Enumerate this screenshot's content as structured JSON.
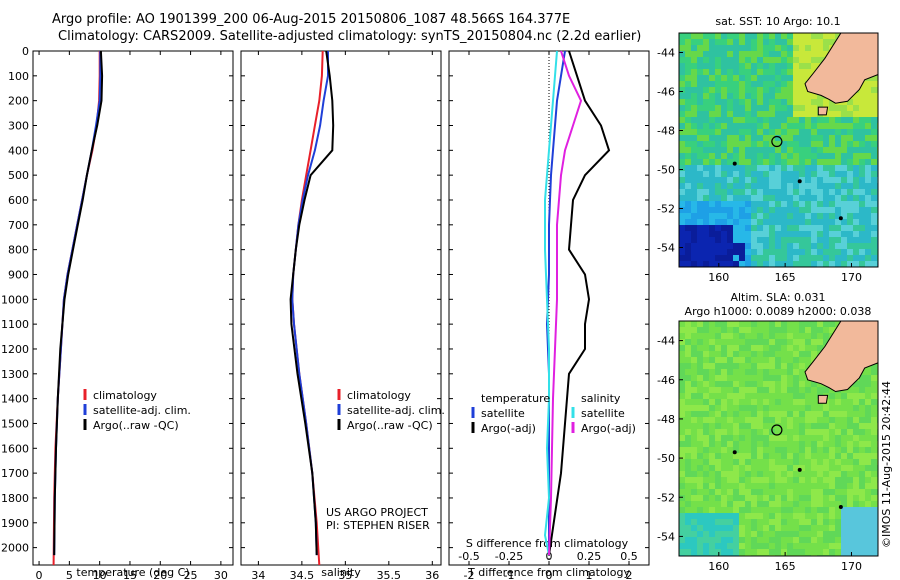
{
  "header": {
    "line1": "Argo profile: AO 1901399_200 06-Aug-2015 20150806_1087 48.566S 164.377E",
    "line2": "Climatology: CARS2009. Satellite-adjusted climatology: synTS_20150804.nc (2.2d earlier)"
  },
  "credit": "©IMOS 11-Aug-2015 20:42:44",
  "project_note": [
    "US ARGO PROJECT",
    "PI: STEPHEN RISER"
  ],
  "colors": {
    "climatology": "#e8202a",
    "satellite": "#1f3fd8",
    "argo": "#000000",
    "sal_satellite": "#33e0e8",
    "sal_argo": "#e020e0",
    "land": "#f2b99b"
  },
  "chart_data": [
    {
      "type": "line",
      "id": "temperature",
      "xlabel": "temperature (deg C)",
      "xlim": [
        -1,
        32
      ],
      "xticks": [
        0,
        5,
        10,
        15,
        20,
        25,
        30
      ],
      "ylim": [
        2070,
        0
      ],
      "yticks": [
        0,
        100,
        200,
        300,
        400,
        500,
        600,
        700,
        800,
        900,
        1000,
        1100,
        1200,
        1300,
        1400,
        1500,
        1600,
        1700,
        1800,
        1900,
        2000
      ],
      "legend": [
        "climatology",
        "satellite-adj. clim.",
        "Argo(..raw -QC)"
      ],
      "series": [
        {
          "name": "climatology",
          "color_key": "climatology",
          "x": [
            10.0,
            10.0,
            9.9,
            9.5,
            8.8,
            7.9,
            7.1,
            6.3,
            5.5,
            4.7,
            4.1,
            3.6,
            3.1,
            2.7,
            2.5,
            2.4
          ],
          "y": [
            0,
            100,
            200,
            300,
            400,
            500,
            600,
            700,
            800,
            900,
            1000,
            1200,
            1400,
            1600,
            1800,
            2070
          ]
        },
        {
          "name": "satellite-adj. clim.",
          "color_key": "satellite",
          "x": [
            10.1,
            10.1,
            10.0,
            9.4,
            8.7,
            7.9,
            7.1,
            6.3,
            5.5,
            4.7,
            4.1,
            3.6,
            3.1,
            2.8,
            2.6,
            2.5
          ],
          "y": [
            0,
            100,
            200,
            300,
            400,
            500,
            600,
            700,
            800,
            900,
            1000,
            1200,
            1400,
            1600,
            1800,
            2030
          ]
        },
        {
          "name": "Argo(..raw -QC)",
          "color_key": "argo",
          "x": [
            10.2,
            10.4,
            10.3,
            9.6,
            8.7,
            7.9,
            7.2,
            6.4,
            5.6,
            4.8,
            4.2,
            3.5,
            3.1,
            2.8,
            2.6,
            2.5
          ],
          "y": [
            0,
            100,
            200,
            300,
            400,
            500,
            600,
            700,
            800,
            900,
            1000,
            1200,
            1400,
            1600,
            1800,
            2030
          ]
        }
      ]
    },
    {
      "type": "line",
      "id": "salinity",
      "xlabel": "salinity",
      "xlim": [
        33.8,
        36.1
      ],
      "xticks": [
        34,
        34.5,
        35,
        35.5,
        36
      ],
      "ylim": [
        2070,
        0
      ],
      "legend": [
        "climatology",
        "satellite-adj. clim.",
        "Argo(..raw -QC)"
      ],
      "series": [
        {
          "name": "climatology",
          "color_key": "climatology",
          "x": [
            34.74,
            34.73,
            34.7,
            34.65,
            34.6,
            34.55,
            34.5,
            34.46,
            34.43,
            34.4,
            34.39,
            34.41,
            34.47,
            34.55,
            34.62,
            34.67,
            34.7
          ],
          "y": [
            0,
            100,
            200,
            300,
            400,
            500,
            600,
            700,
            800,
            900,
            1000,
            1100,
            1300,
            1500,
            1700,
            1900,
            2070
          ]
        },
        {
          "name": "satellite-adj. clim.",
          "color_key": "satellite",
          "x": [
            34.8,
            34.8,
            34.75,
            34.71,
            34.65,
            34.57,
            34.51,
            34.46,
            34.43,
            34.4,
            34.39,
            34.41,
            34.47,
            34.55,
            34.62,
            34.66,
            34.67
          ],
          "y": [
            0,
            100,
            200,
            300,
            400,
            500,
            600,
            700,
            800,
            900,
            1000,
            1100,
            1300,
            1500,
            1700,
            1900,
            2030
          ]
        },
        {
          "name": "Argo(..raw -QC)",
          "color_key": "argo",
          "x": [
            34.78,
            34.82,
            34.85,
            34.86,
            34.85,
            34.6,
            34.53,
            34.47,
            34.43,
            34.4,
            34.37,
            34.38,
            34.45,
            34.54,
            34.62,
            34.66,
            34.67
          ],
          "y": [
            0,
            100,
            200,
            300,
            400,
            500,
            600,
            700,
            800,
            900,
            1000,
            1100,
            1300,
            1500,
            1700,
            1900,
            2030
          ]
        }
      ]
    },
    {
      "type": "line",
      "id": "difference",
      "xlabel": "T difference from climatology",
      "xlabel2": "S difference from climatology",
      "xlim": [
        -2.5,
        2.5
      ],
      "xticks": [
        -2,
        -1,
        0,
        1,
        2
      ],
      "xticks_s": [
        -0.5,
        -0.25,
        0,
        0.25,
        0.5
      ],
      "ylim": [
        2070,
        0
      ],
      "legend_titles": [
        "temperature",
        "salinity"
      ],
      "legend": [
        {
          "group": "temperature",
          "label": "satellite",
          "color_key": "satellite"
        },
        {
          "group": "temperature",
          "label": "Argo(-adj)",
          "color_key": "argo"
        },
        {
          "group": "salinity",
          "label": "satellite",
          "color_key": "sal_satellite"
        },
        {
          "group": "salinity",
          "label": "Argo(-adj)",
          "color_key": "sal_argo"
        }
      ],
      "series": [
        {
          "name": "T satellite",
          "color_key": "satellite",
          "x": [
            0.4,
            0.3,
            0.2,
            0.15,
            0.1,
            0.05,
            0.0,
            0.0,
            -0.05,
            0.0,
            0.0,
            0.0,
            0.0,
            0.0
          ],
          "y": [
            0,
            100,
            200,
            300,
            400,
            500,
            700,
            900,
            1100,
            1300,
            1500,
            1700,
            1900,
            2030
          ]
        },
        {
          "name": "T Argo(-adj)",
          "color_key": "argo",
          "x": [
            0.5,
            0.7,
            0.9,
            1.3,
            1.5,
            0.9,
            0.6,
            0.5,
            0.9,
            1.0,
            0.9,
            0.9,
            0.5,
            0.4,
            0.3,
            0.0
          ],
          "y": [
            0,
            100,
            200,
            300,
            400,
            500,
            600,
            800,
            900,
            1000,
            1100,
            1200,
            1300,
            1500,
            1700,
            2030
          ]
        },
        {
          "name": "S satellite",
          "color_key": "sal_satellite",
          "x": [
            0.2,
            0.15,
            0.1,
            0.0,
            -0.1,
            -0.1,
            -0.05,
            0.0,
            0.0,
            -0.05,
            0.0,
            -0.1,
            0.0
          ],
          "y": [
            0,
            100,
            200,
            400,
            600,
            800,
            1000,
            1200,
            1400,
            1600,
            1800,
            1950,
            2030
          ]
        },
        {
          "name": "S Argo(-adj)",
          "color_key": "sal_argo",
          "x": [
            0.3,
            0.5,
            0.8,
            0.6,
            0.4,
            0.3,
            0.2,
            0.2,
            0.1,
            0.05,
            0.0
          ],
          "y": [
            0,
            100,
            200,
            300,
            400,
            500,
            700,
            1000,
            1400,
            1800,
            2030
          ]
        }
      ]
    },
    {
      "type": "heatmap",
      "id": "sst_map",
      "title": "sat. SST: 10 Argo: 10.1",
      "xlim": [
        157,
        172
      ],
      "ylim": [
        -55,
        -43
      ],
      "xticks": [
        160,
        165,
        170
      ],
      "yticks": [
        -54,
        -52,
        -50,
        -48,
        -46,
        -44
      ],
      "float_position": [
        164.377,
        -48.566
      ]
    },
    {
      "type": "heatmap",
      "id": "sla_map",
      "title": [
        "Altim. SLA: 0.031",
        "Argo h1000: 0.0089 h2000: 0.038"
      ],
      "xlim": [
        157,
        172
      ],
      "ylim": [
        -55,
        -43
      ],
      "xticks": [
        160,
        165,
        170
      ],
      "yticks": [
        -54,
        -52,
        -50,
        -48,
        -46,
        -44
      ],
      "float_position": [
        164.377,
        -48.566
      ]
    }
  ]
}
